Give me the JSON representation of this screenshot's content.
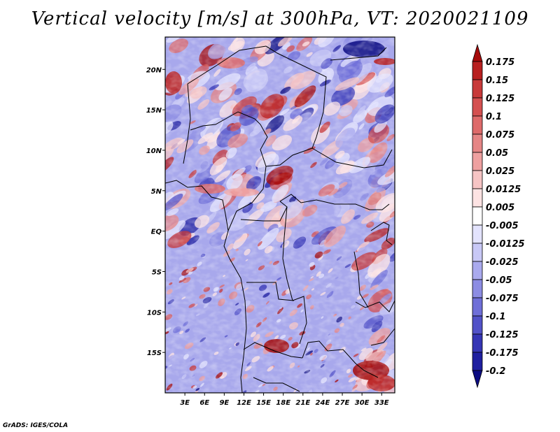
{
  "title": "Vertical velocity [m/s] at 300hPa, VT: 2020021109",
  "credit": "GrADS: IGES/COLA",
  "chart_data": {
    "type": "heatmap",
    "title": "Vertical velocity [m/s] at 300hPa, VT: 2020021109",
    "variable": "Vertical velocity",
    "units": "m/s",
    "level": "300hPa",
    "valid_time": "2020021109",
    "x_range": [
      0,
      35
    ],
    "y_range": [
      -20,
      24
    ],
    "x_ticks": [
      {
        "value": 3,
        "label": "3E"
      },
      {
        "value": 6,
        "label": "6E"
      },
      {
        "value": 9,
        "label": "9E"
      },
      {
        "value": 12,
        "label": "12E"
      },
      {
        "value": 15,
        "label": "15E"
      },
      {
        "value": 18,
        "label": "18E"
      },
      {
        "value": 21,
        "label": "21E"
      },
      {
        "value": 24,
        "label": "24E"
      },
      {
        "value": 27,
        "label": "27E"
      },
      {
        "value": 30,
        "label": "30E"
      },
      {
        "value": 33,
        "label": "33E"
      }
    ],
    "y_ticks": [
      {
        "value": 20,
        "label": "20N"
      },
      {
        "value": 15,
        "label": "15N"
      },
      {
        "value": 10,
        "label": "10N"
      },
      {
        "value": 5,
        "label": "5N"
      },
      {
        "value": 0,
        "label": "EQ"
      },
      {
        "value": -5,
        "label": "5S"
      },
      {
        "value": -10,
        "label": "10S"
      },
      {
        "value": -15,
        "label": "15S"
      }
    ],
    "colorbar": {
      "levels": [
        "0.175",
        "0.15",
        "0.125",
        "0.1",
        "0.075",
        "0.05",
        "0.025",
        "0.0125",
        "0.005",
        "-0.005",
        "-0.0125",
        "-0.025",
        "-0.05",
        "-0.075",
        "-0.1",
        "-0.125",
        "-0.175",
        "-0.2"
      ],
      "colors": [
        "#a50a0a",
        "#b82020",
        "#c83a3a",
        "#d45050",
        "#de6a6a",
        "#e58585",
        "#eea0a0",
        "#f6c4c4",
        "#fde3e3",
        "#ffffff",
        "#e3e3fd",
        "#c8c8f6",
        "#aaaaee",
        "#8c8ce3",
        "#6f6fd8",
        "#5252c8",
        "#3535b5",
        "#1f1fa0",
        "#0c0c82"
      ]
    }
  }
}
